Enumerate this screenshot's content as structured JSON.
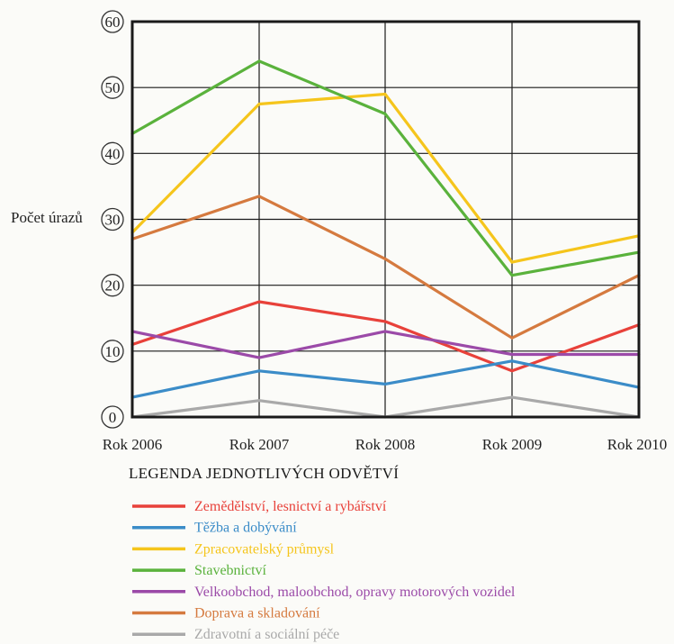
{
  "chart_data": {
    "type": "line",
    "ylabel": "Počet úrazů",
    "categories": [
      "Rok 2006",
      "Rok 2007",
      "Rok 2008",
      "Rok 2009",
      "Rok 2010"
    ],
    "ylim": [
      0,
      60
    ],
    "yticks": [
      "0",
      "10",
      "20",
      "30",
      "40",
      "50",
      "60"
    ],
    "grid": true,
    "legend": {
      "title": "LEGENDA JEDNOTLIVÝCH ODVĚTVÍ",
      "placement": "bottom"
    },
    "series": [
      {
        "name": "Zemědělství, lesnictví a rybářství",
        "color": "#e8413a",
        "values": [
          11,
          17.5,
          14.5,
          7,
          14
        ]
      },
      {
        "name": "Těžba a dobývání",
        "color": "#3b8cc8",
        "values": [
          3,
          7,
          5,
          8.5,
          4.5
        ]
      },
      {
        "name": "Zpracovatelský průmysl",
        "color": "#f5c51c",
        "values": [
          28,
          47.5,
          49,
          23.5,
          27.5
        ]
      },
      {
        "name": "Stavebnictví",
        "color": "#5ab23c",
        "values": [
          43,
          54,
          46,
          21.5,
          25
        ]
      },
      {
        "name": "Velkoobchod, maloobchod, opravy motorových vozidel",
        "color": "#9b4aa8",
        "values": [
          13,
          9,
          13,
          9.5,
          9.5
        ]
      },
      {
        "name": "Doprava a skladování",
        "color": "#d57a3f",
        "values": [
          27,
          33.5,
          24,
          12,
          21.5
        ]
      },
      {
        "name": "Zdravotní a sociální péče",
        "color": "#a9a9a9",
        "values": [
          0,
          2.5,
          0,
          3,
          0
        ]
      }
    ]
  }
}
